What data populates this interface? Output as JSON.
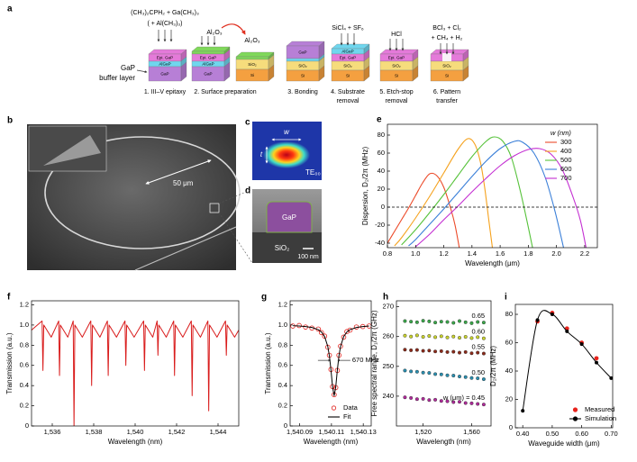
{
  "panel_labels": [
    "a",
    "b",
    "c",
    "d",
    "e",
    "f",
    "g",
    "h",
    "i"
  ],
  "schematic": {
    "steps": [
      {
        "label": [
          "1. III–V epitaxy"
        ],
        "reagents": [
          "(CH₃)₂CPH₂ + Ga(CH₃)₃",
          "( + Al(CH₃)₃)"
        ],
        "layers": [
          "Epi. GaP",
          "AlGaP",
          "GaP"
        ]
      },
      {
        "label": [
          "2. Surface preparation"
        ],
        "reagents": [
          "Al₂O₃",
          "Al₂O₃"
        ],
        "layers": [
          "Epi. GaP",
          "AlGaP",
          "GaP",
          "SiO₂",
          "Si"
        ]
      },
      {
        "label": [
          "3. Bonding"
        ],
        "layers": [
          "GaP",
          "SiO₂",
          "Si"
        ]
      },
      {
        "label": [
          "4. Substrate",
          "removal"
        ],
        "reagents": [
          "SiCl₄ + SF₆"
        ],
        "layers": [
          "AlGaP",
          "Epi. GaP",
          "SiO₂",
          "Si"
        ]
      },
      {
        "label": [
          "5. Etch-stop",
          "removal"
        ],
        "reagents": [
          "HCl"
        ],
        "layers": [
          "Epi. GaP",
          "SiO₂",
          "Si"
        ]
      },
      {
        "label": [
          "6. Pattern",
          "transfer"
        ],
        "reagents": [
          "BCl₃ + Cl₂",
          "+ CH₄ + H₂"
        ],
        "layers": [
          "SiO₂",
          "Si"
        ]
      }
    ],
    "buffer_label": [
      "GaP",
      "buffer layer"
    ]
  },
  "sem_ring": {
    "scale_bar": "50 μm"
  },
  "mode_profile": {
    "width_label": "w",
    "thickness_label": "t",
    "mode": "TE₀₀"
  },
  "cross_section": {
    "material": "GaP",
    "substrate": "SiO₂",
    "scale_bar": "100 nm"
  },
  "chart_data": [
    {
      "type": "line",
      "xlabel": "Wavelength (μm)",
      "ylabel": "Dispersion, D₂/2π (MHz)",
      "xlim": [
        0.8,
        2.29
      ],
      "ylim": [
        -45,
        92
      ],
      "xticks": [
        0.8,
        {
          "value": 1,
          "label": "1.0"
        },
        1.2,
        1.4,
        1.6,
        1.8,
        {
          "value": 2,
          "label": "2.0"
        },
        2.2
      ],
      "yticks": [
        -40,
        -20,
        0,
        20,
        40,
        60,
        80
      ],
      "reference_line": 0,
      "legend": "upper right",
      "legend_title": "w (nm)",
      "series": [
        {
          "name": "300",
          "color": "#ec4b2a",
          "x": [
            0.8,
            0.85,
            0.9,
            0.95,
            1.0,
            1.05,
            1.1,
            1.15,
            1.2,
            1.25,
            1.28,
            1.31
          ],
          "values": [
            -40,
            -27,
            -14,
            -1,
            13,
            27,
            37,
            35,
            22,
            -2,
            -20,
            -45
          ]
        },
        {
          "name": "400",
          "color": "#f5a21e",
          "x": [
            0.85,
            0.9,
            1.0,
            1.1,
            1.2,
            1.3,
            1.37,
            1.42,
            1.46,
            1.49,
            1.52,
            1.545
          ],
          "values": [
            -43,
            -34,
            -12,
            12,
            38,
            64,
            76,
            70,
            50,
            22,
            -15,
            -45
          ]
        },
        {
          "name": "500",
          "color": "#56c23a",
          "x": [
            0.9,
            1.0,
            1.1,
            1.2,
            1.3,
            1.4,
            1.5,
            1.56,
            1.62,
            1.68,
            1.74,
            1.79,
            1.83
          ],
          "values": [
            -42,
            -25,
            -6,
            14,
            35,
            56,
            73,
            78,
            73,
            55,
            20,
            -15,
            -45
          ]
        },
        {
          "name": "600",
          "color": "#3a7fd8",
          "x": [
            0.95,
            1.0,
            1.1,
            1.2,
            1.3,
            1.4,
            1.5,
            1.6,
            1.7,
            1.76,
            1.84,
            1.92,
            1.99,
            2.05
          ],
          "values": [
            -43,
            -36,
            -19,
            -2,
            16,
            34,
            51,
            65,
            73,
            72,
            60,
            33,
            -5,
            -45
          ]
        },
        {
          "name": "700",
          "color": "#c42fd2",
          "x": [
            1.0,
            1.1,
            1.2,
            1.3,
            1.4,
            1.5,
            1.6,
            1.7,
            1.8,
            1.88,
            1.96,
            2.04,
            2.12,
            2.17,
            2.21
          ],
          "values": [
            -44,
            -30,
            -14,
            1,
            17,
            32,
            46,
            57,
            64,
            65,
            59,
            42,
            10,
            -15,
            -45
          ]
        }
      ]
    },
    {
      "type": "line",
      "xlabel": "Wavelength (nm)",
      "ylabel": "Transmission (a.u.)",
      "xlim": [
        1535,
        1545
      ],
      "ylim": [
        0,
        1.24
      ],
      "xticks": [
        {
          "value": 1536,
          "label": "1,536"
        },
        {
          "value": 1538,
          "label": "1,538"
        },
        {
          "value": 1540,
          "label": "1,540"
        },
        {
          "value": 1542,
          "label": "1,542"
        },
        {
          "value": 1544,
          "label": "1,544"
        }
      ],
      "yticks": [
        0,
        0.2,
        0.4,
        0.6,
        0.8,
        {
          "value": 1,
          "label": "1.0"
        },
        1.2
      ],
      "series": [
        {
          "color": "#d91c1c",
          "x": [
            1535,
            1535.51,
            1535.55,
            1535.59,
            1535.95,
            1536.31,
            1536.35,
            1536.39,
            1536.75,
            1537.01,
            1537.05,
            1537.09,
            1537.45,
            1537.86,
            1537.9,
            1537.94,
            1538.3,
            1538.66,
            1538.7,
            1538.74,
            1539.1,
            1539.51,
            1539.55,
            1539.59,
            1539.95,
            1540.41,
            1540.45,
            1540.49,
            1540.85,
            1541.06,
            1541.1,
            1541.14,
            1541.5,
            1541.86,
            1541.9,
            1541.94,
            1542.3,
            1542.71,
            1542.75,
            1542.79,
            1543.15,
            1543.51,
            1543.55,
            1543.59,
            1543.95,
            1544.36,
            1544.4,
            1544.44,
            1544.8,
            1545
          ],
          "values": [
            0.95,
            1.04,
            0.55,
            1.0,
            0.88,
            1.04,
            0.5,
            1.0,
            0.88,
            1.04,
            0.0,
            1.0,
            0.88,
            1.04,
            0.4,
            1.0,
            0.88,
            1.04,
            0.5,
            1.0,
            0.88,
            1.04,
            0.6,
            1.0,
            0.88,
            1.04,
            0.55,
            1.0,
            0.88,
            1.04,
            0.7,
            1.0,
            0.88,
            1.04,
            0.5,
            1.0,
            0.88,
            1.04,
            0.3,
            1.0,
            0.88,
            1.04,
            0.15,
            1.0,
            0.88,
            1.04,
            0.7,
            1.0,
            0.88,
            0.95
          ]
        }
      ]
    },
    {
      "type": "line",
      "xlabel": "Wavelength (nm)",
      "ylabel": "Transmission (a.u.)",
      "xlim": [
        1540.084,
        1540.135
      ],
      "ylim": [
        0,
        1.24
      ],
      "xticks": [
        {
          "value": 1540.09,
          "label": "1,540.09"
        },
        {
          "value": 1540.11,
          "label": "1,540.11"
        },
        {
          "value": 1540.13,
          "label": "1,540.13"
        }
      ],
      "yticks": [
        0,
        0.2,
        0.4,
        0.6,
        0.8,
        {
          "value": 1,
          "label": "1.0"
        },
        1.2
      ],
      "legend": "lower right",
      "annotation": "670 MHz",
      "x": [
        1540.0857,
        1540.0897,
        1540.0937,
        1540.0977,
        1540.1017,
        1540.1037,
        1540.1057,
        1540.1077,
        1540.1087,
        1540.1097,
        1540.1107,
        1540.1117,
        1540.1127,
        1540.1137,
        1540.1147,
        1540.1157,
        1540.1177,
        1540.1197,
        1540.1217,
        1540.1257,
        1540.1297,
        1540.1337
      ],
      "series": [
        {
          "name": "Data",
          "color": "#e0201c",
          "mode": "markers",
          "marker": "open",
          "values": [
            0.99,
            0.995,
            0.98,
            0.97,
            0.96,
            0.925,
            0.89,
            0.78,
            0.7,
            0.56,
            0.39,
            0.31,
            0.38,
            0.55,
            0.7,
            0.79,
            0.88,
            0.935,
            0.95,
            0.98,
            0.985,
            0.99
          ]
        },
        {
          "name": "Fit",
          "color": "#000000",
          "mode": "lines",
          "values": [
            0.993,
            0.99,
            0.985,
            0.976,
            0.954,
            0.931,
            0.886,
            0.787,
            0.693,
            0.554,
            0.387,
            0.3,
            0.387,
            0.554,
            0.693,
            0.787,
            0.886,
            0.931,
            0.954,
            0.976,
            0.985,
            0.99
          ]
        }
      ]
    },
    {
      "type": "scatter",
      "xlabel": "Wavelength (nm)",
      "ylabel": "Free spectral range, D₁/2π (GHz)",
      "xlim": [
        1498,
        1576
      ],
      "ylim": [
        230,
        272
      ],
      "xticks": [
        {
          "value": 1520,
          "label": "1,520"
        },
        {
          "value": 1560,
          "label": "1,560"
        }
      ],
      "yticks": [
        240,
        250,
        260,
        270
      ],
      "label_prefix": "w (μm) =",
      "x": [
        1505,
        1510,
        1515,
        1520,
        1525,
        1530,
        1535,
        1540,
        1545,
        1550,
        1555,
        1560,
        1565,
        1570
      ],
      "series": [
        {
          "name": "0.65",
          "color": "#3aa84a",
          "values": [
            265.2,
            265.0,
            264.8,
            265.3,
            265.1,
            264.7,
            265.0,
            264.9,
            264.6,
            265.2,
            264.8,
            264.5,
            264.9,
            264.7
          ]
        },
        {
          "name": "0.60",
          "color": "#c9d22c",
          "values": [
            260.3,
            260.0,
            260.4,
            259.9,
            260.2,
            259.8,
            260.1,
            259.7,
            260.0,
            259.6,
            259.9,
            259.5,
            259.8,
            259.4
          ]
        },
        {
          "name": "0.55",
          "color": "#8c2a1a",
          "values": [
            255.6,
            255.4,
            255.5,
            255.2,
            255.3,
            255.0,
            255.1,
            254.8,
            254.9,
            254.6,
            254.8,
            254.4,
            254.6,
            254.3
          ]
        },
        {
          "name": "0.50",
          "color": "#2a8fb0",
          "values": [
            248.6,
            248.3,
            248.2,
            247.9,
            247.8,
            247.4,
            247.3,
            247.0,
            246.9,
            246.6,
            246.4,
            246.1,
            246.0,
            245.7
          ]
        },
        {
          "name": "0.45",
          "color": "#b02a9a",
          "values": [
            239.6,
            239.4,
            239.0,
            239.1,
            238.7,
            238.8,
            238.4,
            238.3,
            238.0,
            238.1,
            237.7,
            237.6,
            237.4,
            237.2
          ]
        }
      ]
    },
    {
      "type": "scatter",
      "xlabel": "Waveguide width (μm)",
      "ylabel": "D₂/2π (MHz)",
      "xlim": [
        0.375,
        0.705
      ],
      "ylim": [
        0,
        87
      ],
      "xticks": [
        {
          "value": 0.4,
          "label": "0.40"
        },
        {
          "value": 0.5,
          "label": "0.50"
        },
        {
          "value": 0.6,
          "label": "0.60"
        },
        {
          "value": 0.7,
          "label": "0.70"
        }
      ],
      "yticks": [
        0,
        20,
        40,
        60,
        80
      ],
      "legend": "lower right",
      "series": [
        {
          "name": "Measured",
          "color": "#e8231c",
          "x": [
            0.45,
            0.5,
            0.55,
            0.6,
            0.65
          ],
          "values": [
            75,
            81,
            70,
            60,
            49
          ]
        },
        {
          "name": "Simulation",
          "color": "#000000",
          "mode": "lines+markers",
          "x": [
            0.4,
            0.45,
            0.5,
            0.55,
            0.6,
            0.65,
            0.7
          ],
          "values": [
            12,
            76,
            80,
            68,
            59,
            46,
            35
          ]
        }
      ]
    }
  ]
}
